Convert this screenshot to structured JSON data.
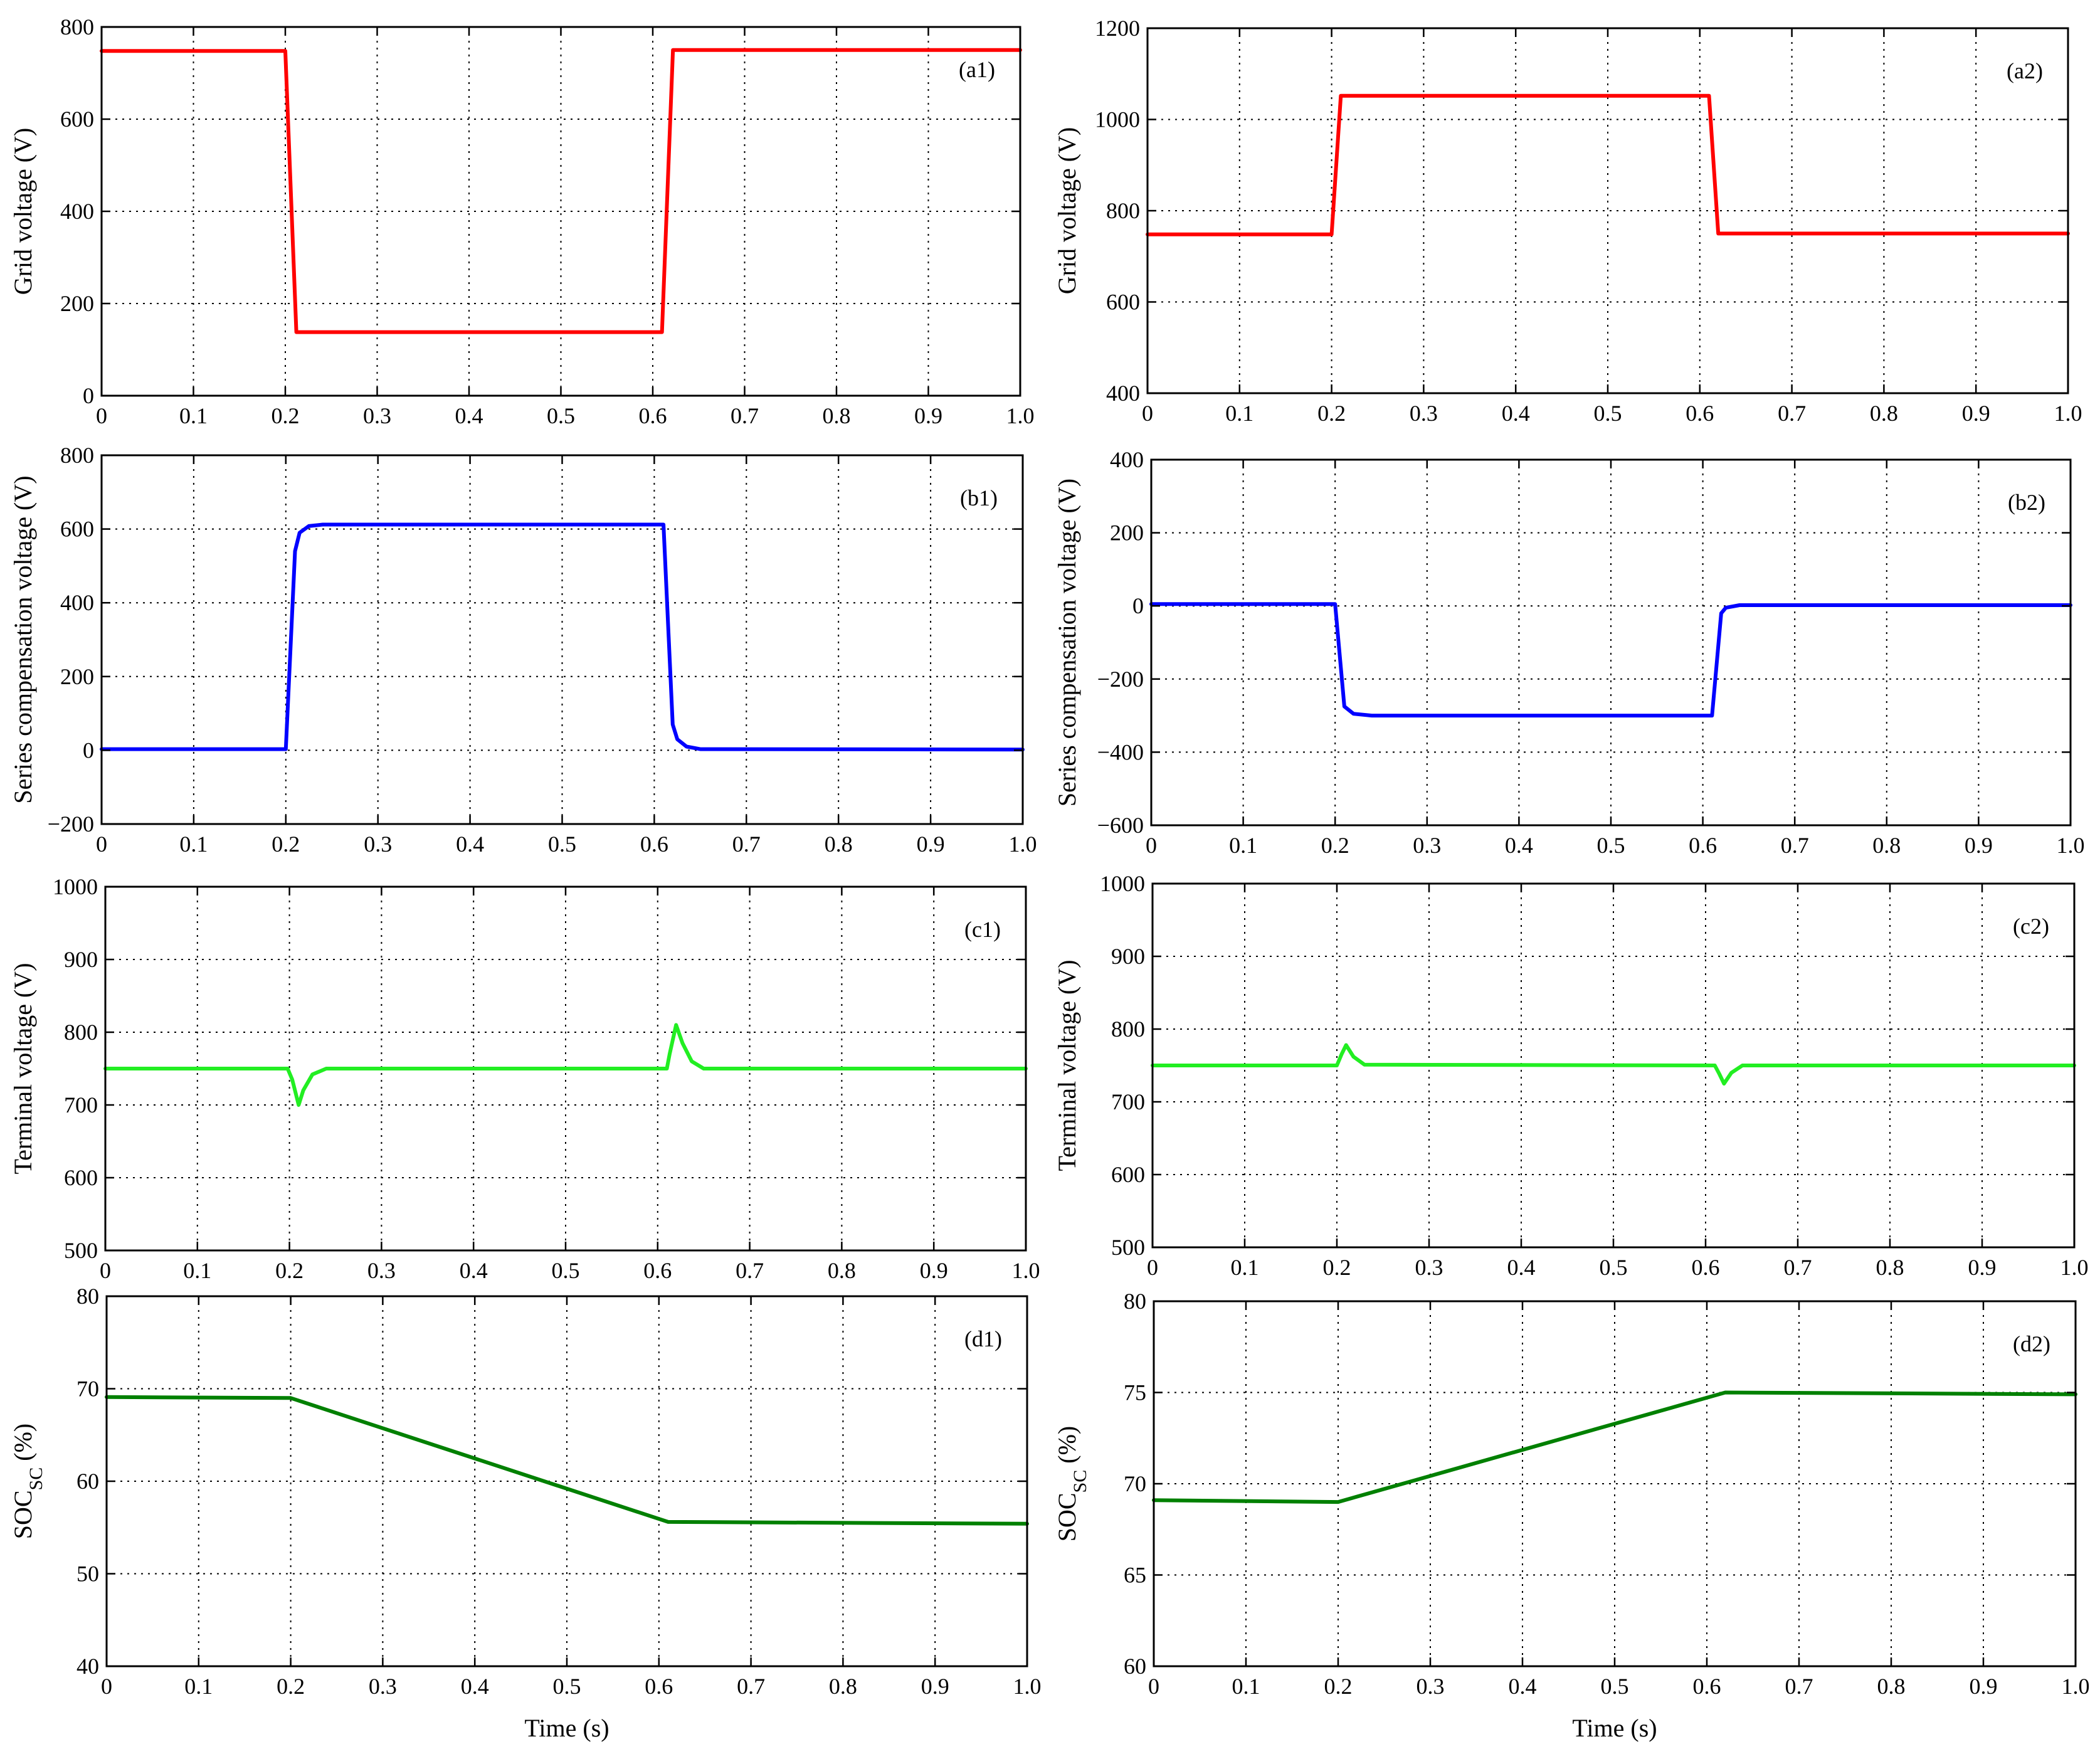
{
  "chart_data": [
    {
      "type": "line",
      "panel_label": "(a1)",
      "xlabel": "",
      "ylabel": "Grid voltage (V)",
      "ylabel_sub": "",
      "ylabel_tail": "",
      "xlim": [
        0,
        1.0
      ],
      "ylim": [
        0,
        800
      ],
      "xticks": [
        "0",
        "0.1",
        "0.2",
        "0.3",
        "0.4",
        "0.5",
        "0.6",
        "0.7",
        "0.8",
        "0.9",
        "1.0"
      ],
      "yticks": [
        "0",
        "200",
        "400",
        "600",
        "800"
      ],
      "grid": true,
      "color": "#ff0000",
      "series": [
        {
          "x": [
            0,
            0.2,
            0.212,
            0.61,
            0.622,
            1.0
          ],
          "y": [
            748,
            748,
            138,
            138,
            750,
            750
          ]
        }
      ]
    },
    {
      "type": "line",
      "panel_label": "(a2)",
      "xlabel": "",
      "ylabel": "Grid voltage (V)",
      "ylabel_sub": "",
      "ylabel_tail": "",
      "xlim": [
        0,
        1.0
      ],
      "ylim": [
        400,
        1200
      ],
      "xticks": [
        "0",
        "0.1",
        "0.2",
        "0.3",
        "0.4",
        "0.5",
        "0.6",
        "0.7",
        "0.8",
        "0.9",
        "1.0"
      ],
      "yticks": [
        "400",
        "600",
        "800",
        "1000",
        "1200"
      ],
      "grid": true,
      "color": "#ff0000",
      "series": [
        {
          "x": [
            0,
            0.2,
            0.21,
            0.61,
            0.62,
            1.0
          ],
          "y": [
            748,
            748,
            1052,
            1052,
            750,
            750
          ]
        }
      ]
    },
    {
      "type": "line",
      "panel_label": "(b1)",
      "xlabel": "",
      "ylabel": "Series compensation voltage (V)",
      "ylabel_sub": "",
      "ylabel_tail": "",
      "xlim": [
        0,
        1.0
      ],
      "ylim": [
        -200,
        800
      ],
      "xticks": [
        "0",
        "0.1",
        "0.2",
        "0.3",
        "0.4",
        "0.5",
        "0.6",
        "0.7",
        "0.8",
        "0.9",
        "1.0"
      ],
      "yticks": [
        "−200",
        "0",
        "200",
        "400",
        "600",
        "800"
      ],
      "grid": true,
      "color": "#0000ff",
      "series": [
        {
          "x": [
            0,
            0.2,
            0.21,
            0.215,
            0.225,
            0.24,
            0.61,
            0.62,
            0.625,
            0.635,
            0.65,
            1.0
          ],
          "y": [
            3,
            3,
            540,
            590,
            608,
            612,
            612,
            70,
            30,
            10,
            3,
            2
          ]
        }
      ]
    },
    {
      "type": "line",
      "panel_label": "(b2)",
      "xlabel": "",
      "ylabel": "Series compensation voltage (V)",
      "ylabel_sub": "",
      "ylabel_tail": "",
      "xlim": [
        0,
        1.0
      ],
      "ylim": [
        -600,
        400
      ],
      "xticks": [
        "0",
        "0.1",
        "0.2",
        "0.3",
        "0.4",
        "0.5",
        "0.6",
        "0.7",
        "0.8",
        "0.9",
        "1.0"
      ],
      "yticks": [
        "−600",
        "−400",
        "−200",
        "0",
        "200",
        "400"
      ],
      "grid": true,
      "color": "#0000ff",
      "series": [
        {
          "x": [
            0,
            0.2,
            0.21,
            0.22,
            0.24,
            0.61,
            0.62,
            0.625,
            0.64,
            1.0
          ],
          "y": [
            5,
            5,
            -275,
            -295,
            -300,
            -300,
            -20,
            -5,
            2,
            2
          ]
        }
      ]
    },
    {
      "type": "line",
      "panel_label": "(c1)",
      "xlabel": "",
      "ylabel": "Terminal voltage (V)",
      "ylabel_sub": "",
      "ylabel_tail": "",
      "xlim": [
        0,
        1.0
      ],
      "ylim": [
        500,
        1000
      ],
      "xticks": [
        "0",
        "0.1",
        "0.2",
        "0.3",
        "0.4",
        "0.5",
        "0.6",
        "0.7",
        "0.8",
        "0.9",
        "1.0"
      ],
      "yticks": [
        "500",
        "600",
        "700",
        "800",
        "900",
        "1000"
      ],
      "grid": true,
      "color": "#22ee22",
      "series": [
        {
          "x": [
            0,
            0.198,
            0.203,
            0.21,
            0.215,
            0.225,
            0.24,
            0.61,
            0.613,
            0.62,
            0.627,
            0.637,
            0.65,
            1.0
          ],
          "y": [
            750,
            750,
            735,
            700,
            720,
            742,
            750,
            750,
            770,
            810,
            785,
            760,
            750,
            750
          ]
        }
      ]
    },
    {
      "type": "line",
      "panel_label": "(c2)",
      "xlabel": "",
      "ylabel": "Terminal voltage (V)",
      "ylabel_sub": "",
      "ylabel_tail": "",
      "xlim": [
        0,
        1.0
      ],
      "ylim": [
        500,
        1000
      ],
      "xticks": [
        "0",
        "0.1",
        "0.2",
        "0.3",
        "0.4",
        "0.5",
        "0.6",
        "0.7",
        "0.8",
        "0.9",
        "1.0"
      ],
      "yticks": [
        "500",
        "600",
        "700",
        "800",
        "900",
        "1000"
      ],
      "grid": true,
      "color": "#22ee22",
      "series": [
        {
          "x": [
            0,
            0.2,
            0.205,
            0.21,
            0.218,
            0.23,
            0.61,
            0.615,
            0.62,
            0.628,
            0.64,
            1.0
          ],
          "y": [
            750,
            750,
            765,
            778,
            762,
            751,
            750,
            738,
            725,
            740,
            750,
            750
          ]
        }
      ]
    },
    {
      "type": "line",
      "panel_label": "(d1)",
      "xlabel": "Time (s)",
      "ylabel": "SOC",
      "ylabel_sub": "SC",
      "ylabel_tail": " (%)",
      "xlim": [
        0,
        1.0
      ],
      "ylim": [
        40,
        80
      ],
      "xticks": [
        "0",
        "0.1",
        "0.2",
        "0.3",
        "0.4",
        "0.5",
        "0.6",
        "0.7",
        "0.8",
        "0.9",
        "1.0"
      ],
      "yticks": [
        "40",
        "50",
        "60",
        "70",
        "80"
      ],
      "grid": true,
      "color": "#008000",
      "series": [
        {
          "x": [
            0,
            0.2,
            0.61,
            1.0
          ],
          "y": [
            69.1,
            69.0,
            55.6,
            55.4
          ]
        }
      ]
    },
    {
      "type": "line",
      "panel_label": "(d2)",
      "xlabel": "Time (s)",
      "ylabel": "SOC",
      "ylabel_sub": "SC",
      "ylabel_tail": " (%)",
      "xlim": [
        0,
        1.0
      ],
      "ylim": [
        60,
        80
      ],
      "xticks": [
        "0",
        "0.1",
        "0.2",
        "0.3",
        "0.4",
        "0.5",
        "0.6",
        "0.7",
        "0.8",
        "0.9",
        "1.0"
      ],
      "yticks": [
        "60",
        "65",
        "70",
        "75",
        "80"
      ],
      "grid": true,
      "color": "#008000",
      "series": [
        {
          "x": [
            0,
            0.2,
            0.62,
            1.0
          ],
          "y": [
            69.1,
            69.0,
            75.0,
            74.9
          ]
        }
      ]
    }
  ]
}
